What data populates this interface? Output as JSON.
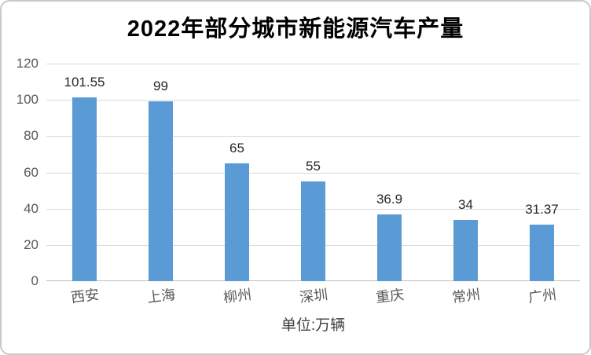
{
  "chart_data": {
    "type": "bar",
    "title": "2022年部分城市新能源汽车产量",
    "categories": [
      "西安",
      "上海",
      "柳州",
      "深圳",
      "重庆",
      "常州",
      "广州"
    ],
    "values": [
      101.55,
      99,
      65,
      55,
      36.9,
      34,
      31.37
    ],
    "value_labels": [
      "101.55",
      "99",
      "65",
      "55",
      "36.9",
      "34",
      "31.37"
    ],
    "xlabel": "单位:万辆",
    "ylabel": "",
    "ylim": [
      0,
      120
    ],
    "yticks": [
      0,
      20,
      40,
      60,
      80,
      100,
      120
    ],
    "grid": true,
    "legend": false,
    "bar_color": "#5b9bd5",
    "gridline_color": "#d9d9d9",
    "baseline_color": "#bfbfbf",
    "tick_label_color": "#595959",
    "value_label_color": "#262626"
  }
}
